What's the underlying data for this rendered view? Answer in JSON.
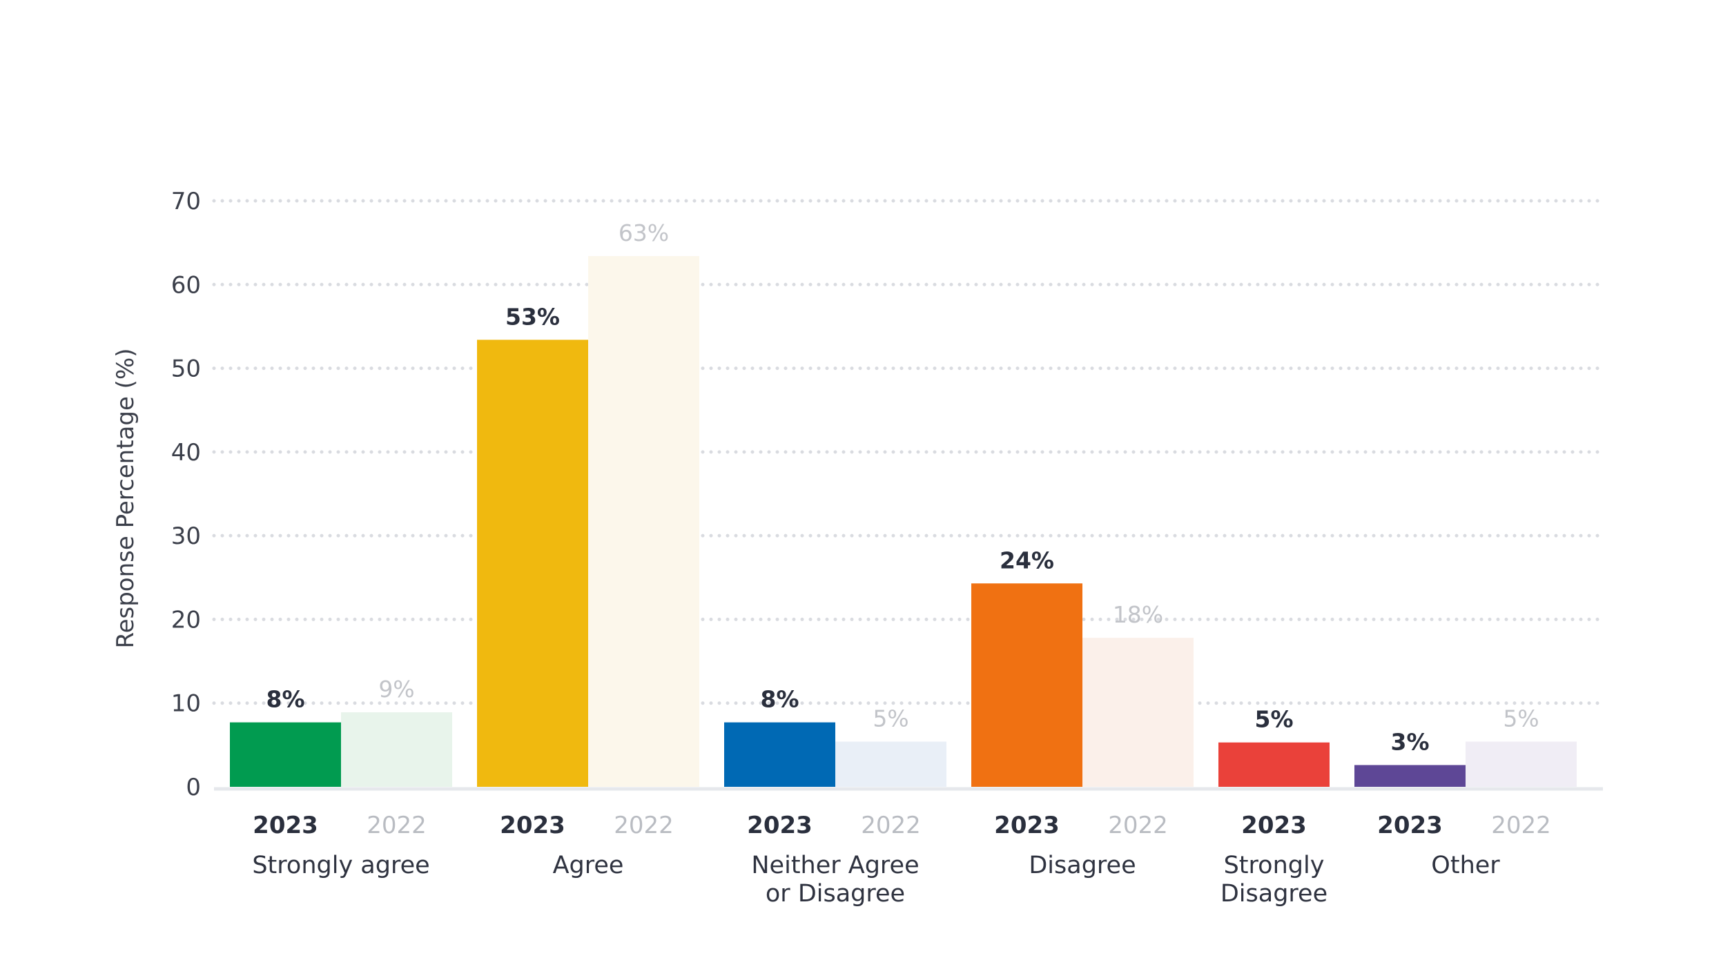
{
  "chart_data": {
    "type": "bar",
    "ylabel": "Response Percentage (%)",
    "ylim": [
      0,
      70
    ],
    "yticks": [
      0,
      10,
      20,
      30,
      40,
      50,
      60,
      70
    ],
    "grid": true,
    "categories": [
      {
        "lines": [
          "Strongly agree"
        ],
        "color_2023": "#019b50",
        "color_2022": "#e8f4eb",
        "bars": [
          {
            "year": "2023",
            "value": 7.7,
            "label": "8%"
          },
          {
            "year": "2022",
            "value": 8.9,
            "label": "9%"
          }
        ]
      },
      {
        "lines": [
          "Agree"
        ],
        "color_2023": "#f0b90f",
        "color_2022": "#fcf7eb",
        "bars": [
          {
            "year": "2023",
            "value": 53.4,
            "label": "53%"
          },
          {
            "year": "2022",
            "value": 63.4,
            "label": "63%"
          }
        ]
      },
      {
        "lines": [
          "Neither Agree",
          "or Disagree"
        ],
        "color_2023": "#0069b4",
        "color_2022": "#e9eff7",
        "bars": [
          {
            "year": "2023",
            "value": 7.7,
            "label": "8%"
          },
          {
            "year": "2022",
            "value": 5.4,
            "label": "5%"
          }
        ]
      },
      {
        "lines": [
          "Disagree"
        ],
        "color_2023": "#f07112",
        "color_2022": "#fbf0ea",
        "bars": [
          {
            "year": "2023",
            "value": 24.3,
            "label": "24%"
          },
          {
            "year": "2022",
            "value": 17.8,
            "label": "18%"
          }
        ]
      },
      {
        "lines": [
          "Strongly",
          "Disagree"
        ],
        "color_2023": "#ea413a",
        "color_2022": null,
        "bars": [
          {
            "year": "2023",
            "value": 5.3,
            "label": "5%"
          }
        ]
      },
      {
        "lines": [
          "Other"
        ],
        "color_2023": "#5e4796",
        "color_2022": "#f0edf5",
        "bars": [
          {
            "year": "2023",
            "value": 2.6,
            "label": "3%"
          },
          {
            "year": "2022",
            "value": 5.4,
            "label": "5%"
          }
        ]
      }
    ]
  }
}
